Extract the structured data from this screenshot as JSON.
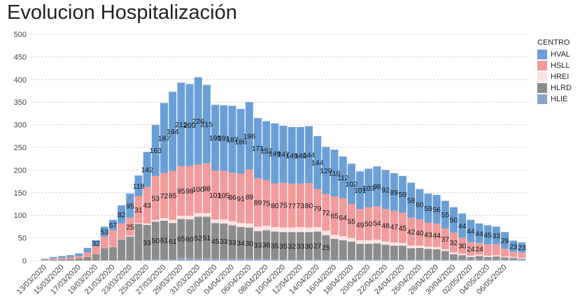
{
  "title": "Evolucion Hospitalización",
  "legend": {
    "title": "CENTRO",
    "items": [
      {
        "label": "HVAL",
        "color": "#6a9fd6"
      },
      {
        "label": "HSLL",
        "color": "#f29b9b"
      },
      {
        "label": "HREI",
        "color": "#fde3e3"
      },
      {
        "label": "HLRD",
        "color": "#8c8c8c"
      },
      {
        "label": "HLIE",
        "color": "#88a4c8"
      }
    ]
  },
  "chart_data": {
    "type": "bar",
    "stacked": true,
    "title": "Evolucion Hospitalización",
    "xlabel": "",
    "ylabel": "",
    "ylim": [
      0,
      500
    ],
    "yticks": [
      "0",
      "50",
      "100",
      "150",
      "200",
      "250",
      "300",
      "350",
      "400",
      "450",
      "500"
    ],
    "grid": true,
    "legend_position": "right",
    "xtick_labels": [
      "13/03/2020",
      "15/03/2020",
      "17/03/2020",
      "19/03/2020",
      "21/03/2020",
      "23/03/2020",
      "25/03/2020",
      "27/03/2020",
      "29/03/2020",
      "31/03/2020",
      "02/04/2020",
      "04/04/2020",
      "06/04/2020",
      "08/04/2020",
      "10/04/2020",
      "12/04/2020",
      "14/04/2020",
      "16/04/2020",
      "18/04/2020",
      "20/04/2020",
      "22/04/2020",
      "24/04/2020",
      "26/04/2020",
      "28/04/2020",
      "30/04/2020",
      "02/05/2020",
      "04/05/2020",
      "06/05/2020"
    ],
    "categories": [
      "13/03/2020",
      "14/03/2020",
      "15/03/2020",
      "16/03/2020",
      "17/03/2020",
      "18/03/2020",
      "19/03/2020",
      "20/03/2020",
      "21/03/2020",
      "22/03/2020",
      "23/03/2020",
      "24/03/2020",
      "25/03/2020",
      "26/03/2020",
      "27/03/2020",
      "28/03/2020",
      "29/03/2020",
      "30/03/2020",
      "31/03/2020",
      "01/04/2020",
      "02/04/2020",
      "03/04/2020",
      "04/04/2020",
      "05/04/2020",
      "06/04/2020",
      "07/04/2020",
      "08/04/2020",
      "09/04/2020",
      "10/04/2020",
      "11/04/2020",
      "12/04/2020",
      "13/04/2020",
      "14/04/2020",
      "15/04/2020",
      "16/04/2020",
      "17/04/2020",
      "18/04/2020",
      "19/04/2020",
      "20/04/2020",
      "21/04/2020",
      "22/04/2020",
      "23/04/2020",
      "24/04/2020",
      "25/04/2020",
      "26/04/2020",
      "27/04/2020",
      "28/04/2020",
      "29/04/2020",
      "30/04/2020",
      "01/05/2020",
      "02/05/2020",
      "03/05/2020",
      "04/05/2020",
      "05/05/2020",
      "06/05/2020",
      "07/05/2020",
      "08/05/2020"
    ],
    "totals": [
      4,
      8,
      10,
      12,
      16,
      28,
      45,
      75,
      90,
      122,
      148,
      188,
      240,
      300,
      348,
      373,
      393,
      390,
      405,
      388,
      344,
      343,
      342,
      335,
      350,
      315,
      308,
      303,
      298,
      295,
      295,
      297,
      275,
      251,
      245,
      230,
      214,
      197,
      203,
      208,
      200,
      193,
      187,
      172,
      158,
      148,
      145,
      132,
      118,
      104,
      90,
      82,
      78,
      75,
      63,
      44,
      40
    ],
    "series": [
      {
        "name": "HVAL",
        "values": [
          2,
          3,
          4,
          5,
          6,
          10,
          13,
          22,
          23,
          40,
          53,
          46,
          77,
          113,
          155,
          175,
          184,
          181,
          193,
          173,
          145,
          145,
          148,
          143,
          149,
          133,
          130,
          133,
          126,
          125,
          125,
          126,
          117,
          104,
          103,
          92,
          89,
          83,
          85,
          88,
          86,
          83,
          81,
          77,
          67,
          64,
          63,
          61,
          56,
          53,
          49,
          43,
          42,
          39,
          37,
          24,
          22
        ]
      },
      {
        "name": "HSLL",
        "values": [
          1,
          3,
          3,
          4,
          5,
          10,
          18,
          26,
          36,
          34,
          40,
          59,
          81,
          97,
          99,
          108,
          110,
          110,
          107,
          110,
          108,
          107,
          107,
          109,
          119,
          107,
          101,
          96,
          99,
          97,
          96,
          98,
          84,
          81,
          85,
          84,
          75,
          69,
          73,
          74,
          72,
          70,
          67,
          62,
          58,
          53,
          52,
          46,
          44,
          36,
          30,
          26,
          25,
          24,
          17,
          12,
          12
        ]
      },
      {
        "name": "HREI",
        "values": [
          0,
          0,
          0,
          0,
          0,
          0,
          0,
          0,
          1,
          1,
          2,
          2,
          3,
          4,
          6,
          7,
          7,
          8,
          8,
          8,
          8,
          9,
          9,
          9,
          9,
          10,
          10,
          10,
          10,
          10,
          11,
          10,
          10,
          10,
          9,
          9,
          8,
          8,
          8,
          8,
          7,
          7,
          6,
          6,
          5,
          5,
          5,
          4,
          4,
          3,
          3,
          3,
          3,
          3,
          2,
          2,
          2
        ]
      },
      {
        "name": "HLRD",
        "values": [
          1,
          2,
          3,
          3,
          5,
          8,
          14,
          27,
          30,
          47,
          53,
          81,
          77,
          83,
          85,
          80,
          87,
          86,
          93,
          92,
          79,
          78,
          74,
          70,
          69,
          61,
          63,
          61,
          61,
          61,
          61,
          61,
          61,
          54,
          46,
          43,
          40,
          35,
          35,
          36,
          33,
          31,
          31,
          25,
          26,
          24,
          23,
          19,
          12,
          10,
          6,
          8,
          6,
          7,
          5,
          4,
          2
        ]
      },
      {
        "name": "HLIE",
        "values": [
          0,
          0,
          0,
          0,
          0,
          0,
          0,
          0,
          0,
          0,
          0,
          0,
          2,
          3,
          3,
          3,
          5,
          5,
          4,
          5,
          4,
          4,
          4,
          4,
          4,
          4,
          4,
          3,
          2,
          2,
          2,
          2,
          3,
          2,
          2,
          2,
          2,
          2,
          2,
          2,
          2,
          2,
          2,
          2,
          2,
          2,
          2,
          2,
          2,
          2,
          2,
          2,
          2,
          2,
          2,
          2,
          2
        ]
      }
    ],
    "label_rows": [
      {
        "series": "HVAL",
        "labels": [
          "",
          "",
          "",
          "",
          "",
          "",
          "32",
          "53",
          "67",
          "82",
          "95",
          "118",
          "142",
          "163",
          "187",
          "194",
          "212",
          "209",
          "226",
          "215",
          "198",
          "191",
          "187",
          "186",
          "196",
          "171",
          "152",
          "149",
          "147",
          "149",
          "140",
          "144",
          "144",
          "129",
          "118",
          "112",
          "102",
          "101",
          "103",
          "98",
          "92",
          "89",
          "59",
          "58",
          "60",
          "59",
          "56",
          "55",
          "50",
          "44",
          "44",
          "44",
          "45",
          "33",
          "29",
          "23",
          "23"
        ]
      },
      {
        "series": "HSLL",
        "labels": [
          "",
          "",
          "",
          "",
          "",
          "",
          "",
          "",
          "",
          "",
          "25",
          "31",
          "43",
          "53",
          "72",
          "85",
          "95",
          "98",
          "100",
          "98",
          "101",
          "105",
          "86",
          "91",
          "89",
          "89",
          "75",
          "80",
          "75",
          "77",
          "73",
          "80",
          "79",
          "72",
          "65",
          "64",
          "55",
          "49",
          "50",
          "54",
          "48",
          "47",
          "45",
          "42",
          "40",
          "43",
          "44",
          "37",
          "32",
          "30",
          "24",
          "24",
          "",
          "",
          "",
          "",
          ""
        ]
      },
      {
        "series": "HLRD",
        "labels": [
          "",
          "",
          "",
          "",
          "",
          "",
          "",
          "",
          "",
          "",
          "",
          "",
          "33",
          "50",
          "61",
          "61",
          "65",
          "60",
          "52",
          "51",
          "45",
          "33",
          "33",
          "34",
          "30",
          "33",
          "36",
          "35",
          "35",
          "32",
          "33",
          "30",
          "27",
          "25",
          "",
          "",
          "",
          "",
          "",
          "",
          "",
          "",
          "",
          "",
          "",
          "",
          "",
          "",
          "",
          "",
          "",
          "",
          "",
          "",
          "",
          "",
          ""
        ]
      }
    ]
  }
}
